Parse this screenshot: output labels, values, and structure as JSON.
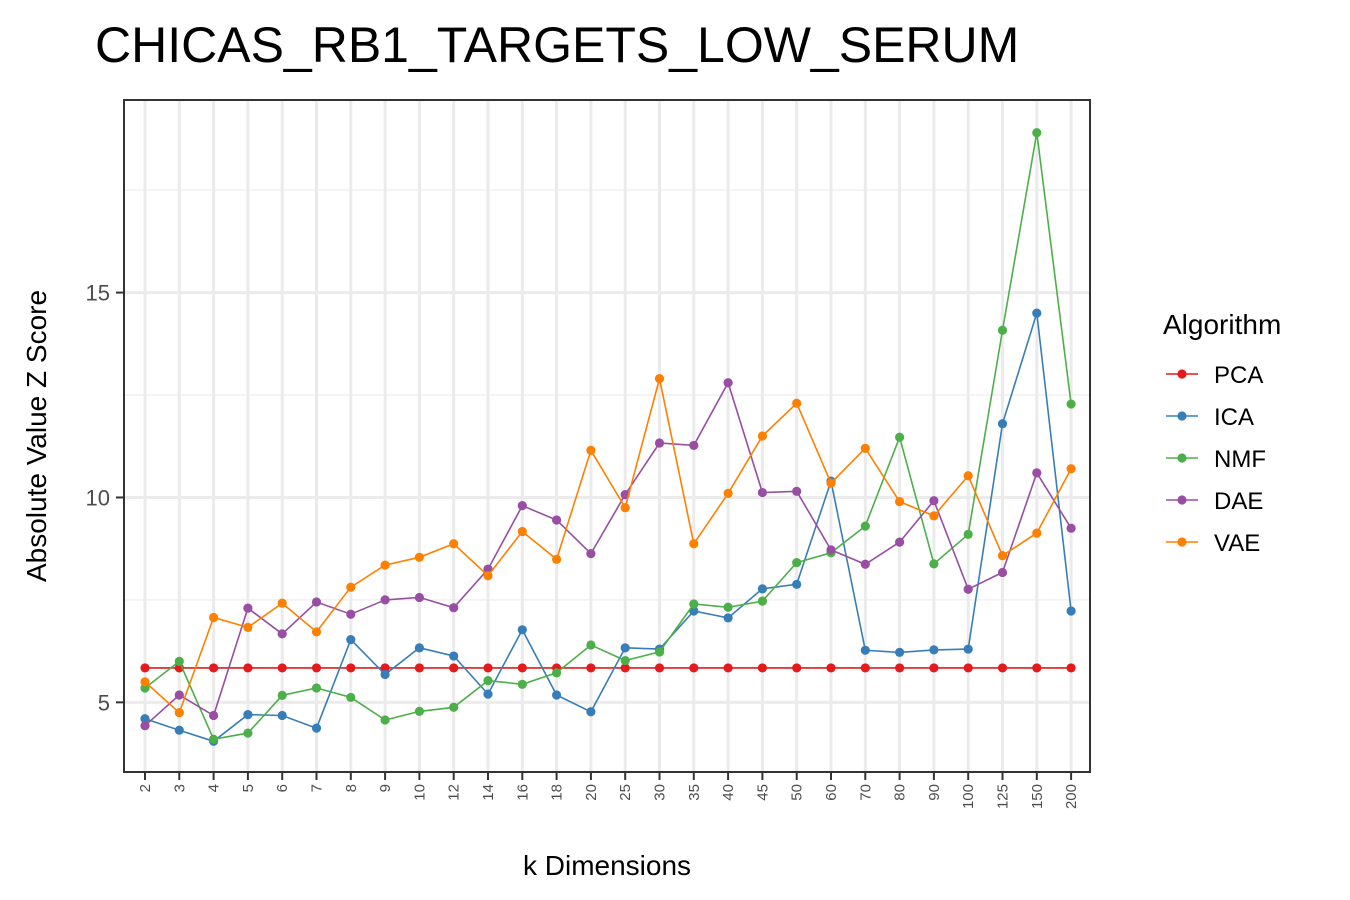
{
  "chart_data": {
    "type": "line",
    "title": "CHICAS_RB1_TARGETS_LOW_SERUM",
    "xlabel": "k Dimensions",
    "ylabel": "Absolute Value Z Score",
    "categories": [
      "2",
      "3",
      "4",
      "5",
      "6",
      "7",
      "8",
      "9",
      "10",
      "12",
      "14",
      "16",
      "18",
      "20",
      "25",
      "30",
      "35",
      "40",
      "45",
      "50",
      "60",
      "70",
      "80",
      "90",
      "100",
      "125",
      "150",
      "200"
    ],
    "y_ticks": [
      5,
      10,
      15
    ],
    "ylim": [
      3.3,
      19.7
    ],
    "grid": true,
    "legend": {
      "title": "Algorithm",
      "position": "right"
    },
    "series": [
      {
        "name": "PCA",
        "color": "#e41a1c",
        "values": [
          5.84,
          5.84,
          5.84,
          5.84,
          5.84,
          5.84,
          5.84,
          5.84,
          5.84,
          5.84,
          5.84,
          5.84,
          5.84,
          5.84,
          5.84,
          5.84,
          5.84,
          5.84,
          5.84,
          5.84,
          5.84,
          5.84,
          5.84,
          5.84,
          5.84,
          5.84,
          5.84,
          5.84
        ]
      },
      {
        "name": "ICA",
        "color": "#377eb8",
        "values": [
          4.6,
          4.32,
          4.05,
          4.7,
          4.68,
          4.37,
          6.53,
          5.68,
          6.33,
          6.13,
          5.2,
          6.77,
          5.18,
          4.77,
          6.33,
          6.3,
          7.23,
          7.06,
          7.77,
          7.88,
          10.4,
          6.27,
          6.22,
          6.28,
          6.3,
          11.8,
          14.5,
          7.23
        ]
      },
      {
        "name": "NMF",
        "color": "#4daf4a",
        "values": [
          5.35,
          6.0,
          4.1,
          4.25,
          5.17,
          5.35,
          5.12,
          4.57,
          4.78,
          4.88,
          5.53,
          5.44,
          5.72,
          6.4,
          6.02,
          6.23,
          7.4,
          7.32,
          7.47,
          8.41,
          8.65,
          9.3,
          11.47,
          8.38,
          9.1,
          14.08,
          18.9,
          12.28
        ]
      },
      {
        "name": "DAE",
        "color": "#984ea3",
        "values": [
          4.43,
          5.18,
          4.68,
          7.3,
          6.67,
          7.45,
          7.15,
          7.5,
          7.56,
          7.31,
          8.25,
          9.8,
          9.45,
          8.63,
          10.07,
          11.33,
          11.27,
          12.8,
          10.12,
          10.15,
          8.72,
          8.37,
          8.91,
          9.92,
          7.76,
          8.17,
          10.6,
          9.25
        ]
      },
      {
        "name": "VAE",
        "color": "#ff7f00",
        "values": [
          5.5,
          4.75,
          7.07,
          6.83,
          7.42,
          6.72,
          7.81,
          8.35,
          8.54,
          8.87,
          8.09,
          9.17,
          8.49,
          11.15,
          9.75,
          12.9,
          8.87,
          10.1,
          11.5,
          12.3,
          10.35,
          11.2,
          9.9,
          9.55,
          10.53,
          8.58,
          9.13,
          10.7
        ]
      }
    ]
  }
}
